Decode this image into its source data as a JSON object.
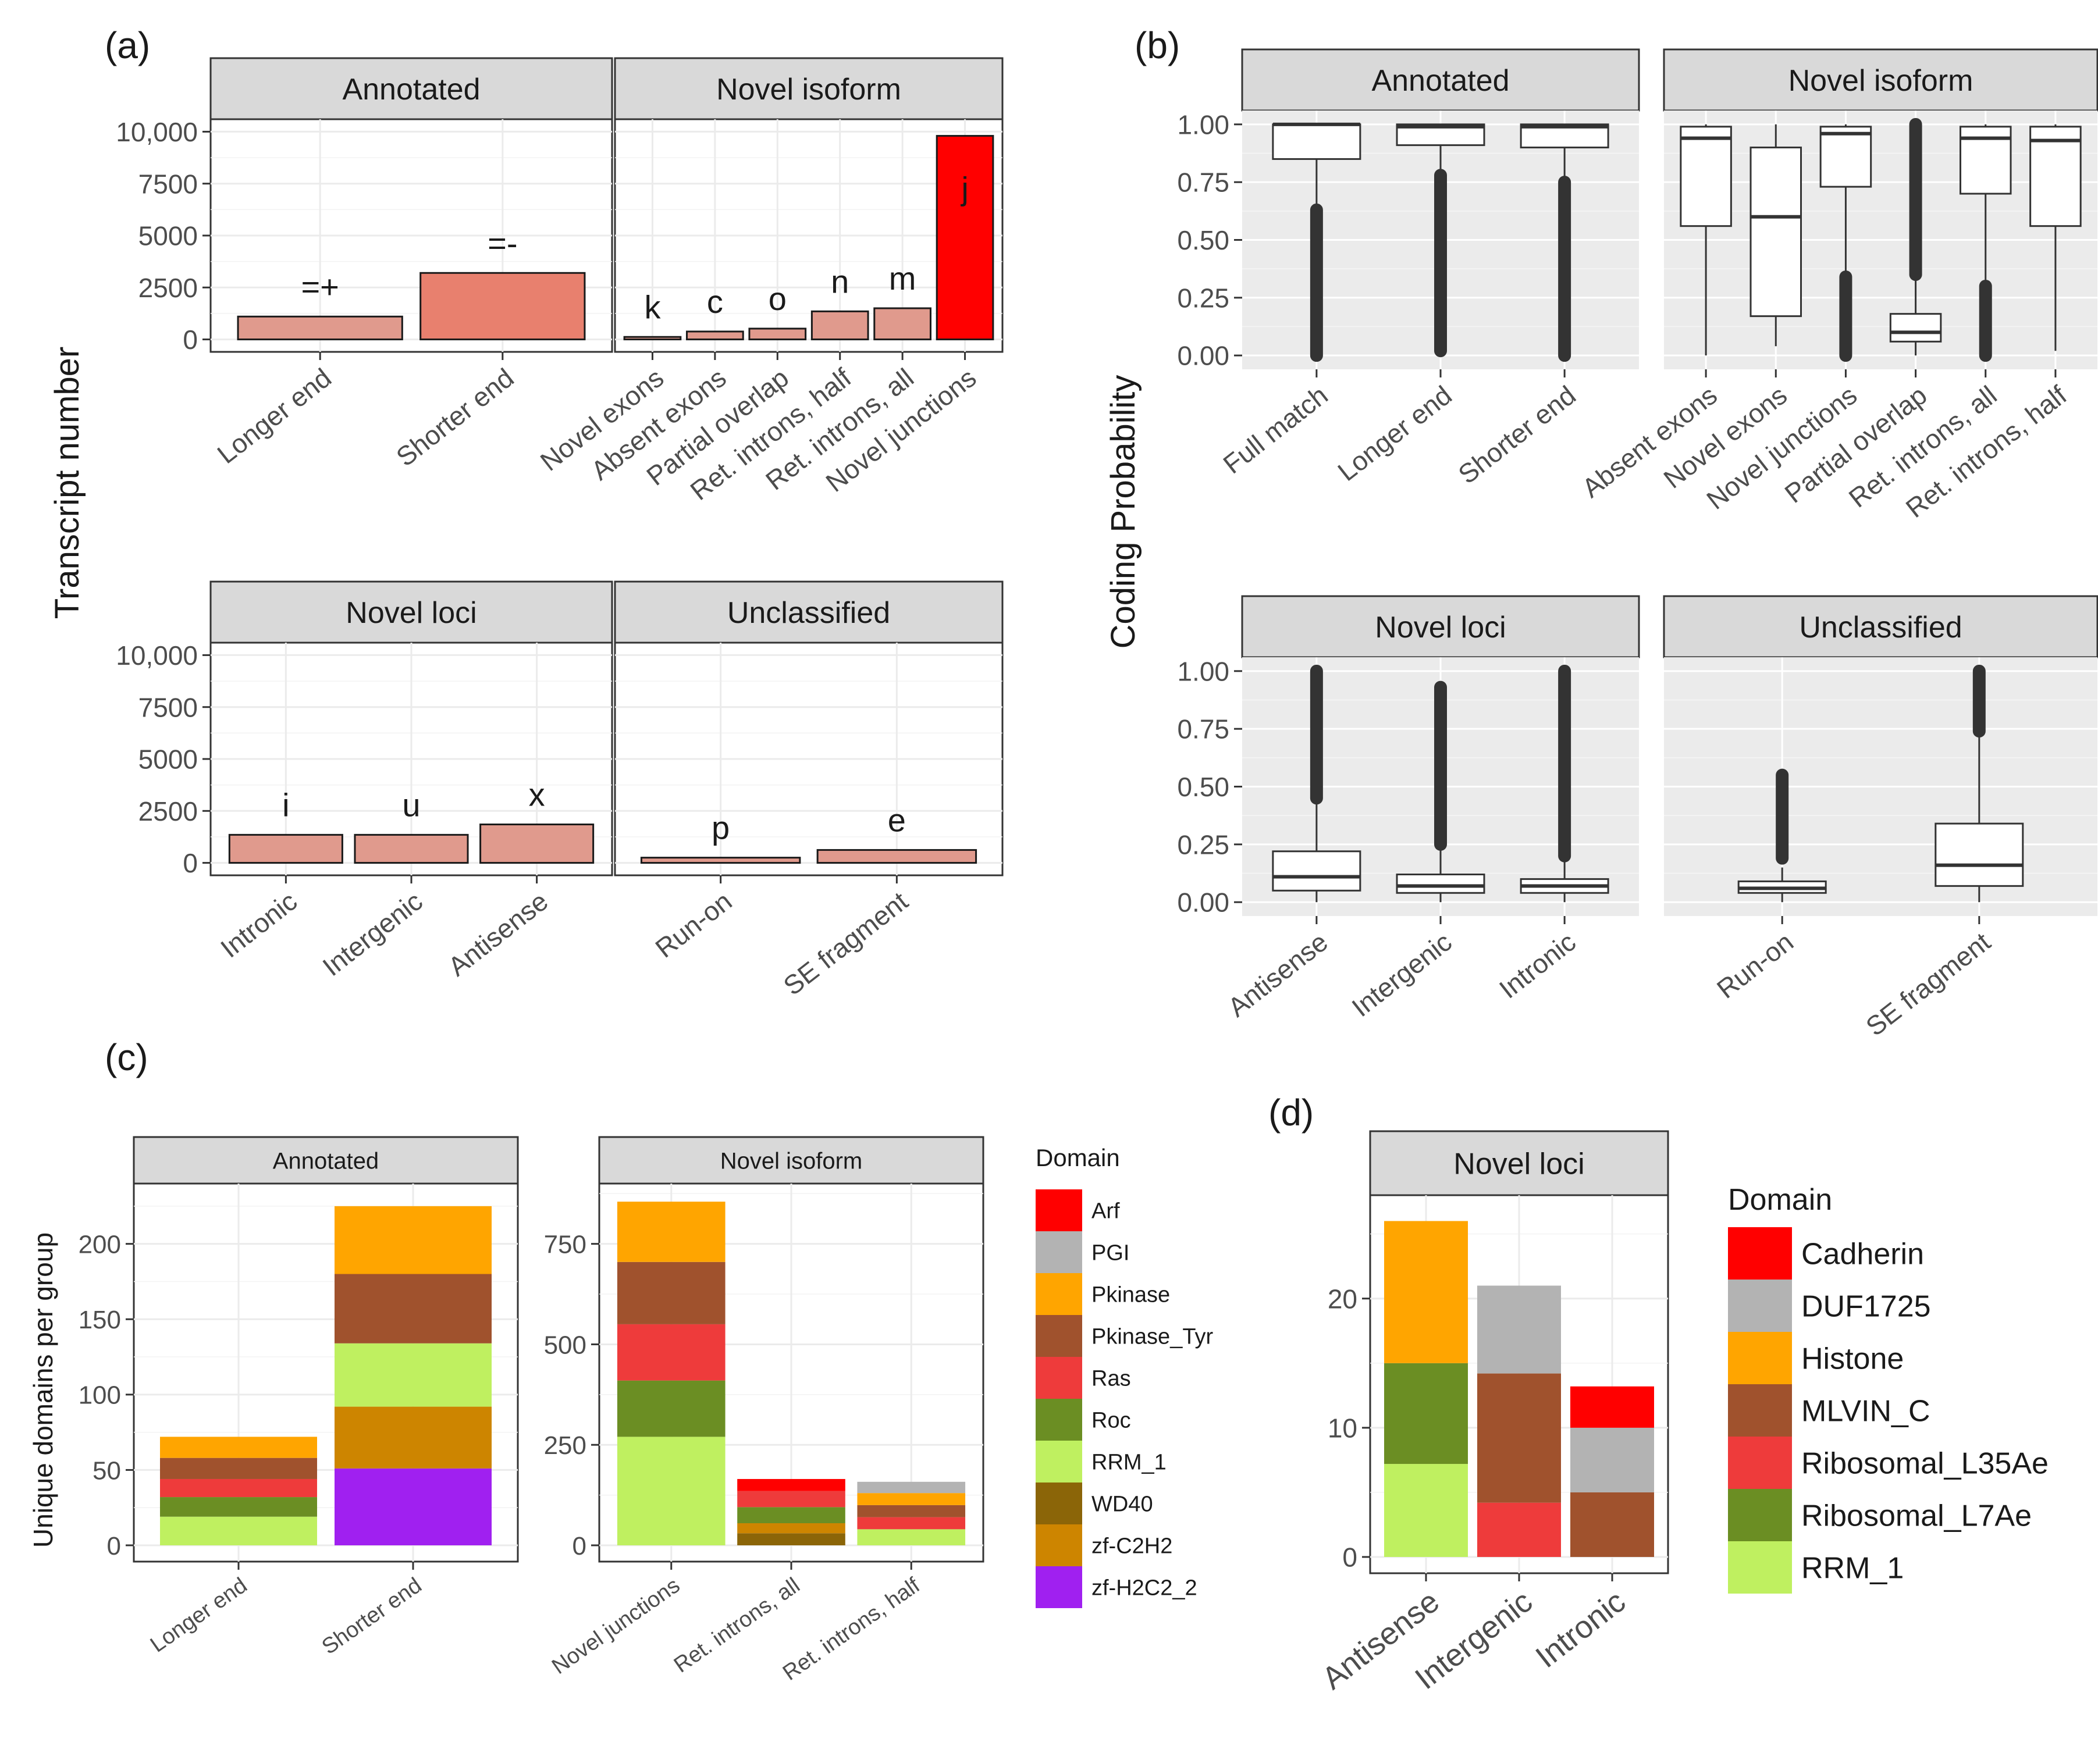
{
  "panel_labels": {
    "a": "(a)",
    "b": "(b)",
    "c": "(c)",
    "d": "(d)"
  },
  "chart_data": [
    {
      "id": "a",
      "type": "bar",
      "ylabel": "Transcript number",
      "ylim": [
        0,
        10000
      ],
      "yticks": [
        0,
        2500,
        5000,
        7500,
        10000
      ],
      "ytick_labels": [
        "0",
        "2500",
        "5000",
        "7500",
        "10,000"
      ],
      "facets": [
        {
          "title": "Annotated",
          "categories": [
            "Longer end",
            "Shorter end"
          ],
          "values": [
            1100,
            3200
          ],
          "bar_labels": [
            "=+",
            "=-"
          ],
          "colors": [
            "#e09a8d",
            "#e8806e"
          ]
        },
        {
          "title": "Novel isoform",
          "categories": [
            "Novel exons",
            "Absent exons",
            "Partial overlap",
            "Ret. introns, half",
            "Ret. introns, all",
            "Novel junctions"
          ],
          "values": [
            120,
            380,
            520,
            1350,
            1500,
            9800
          ],
          "bar_labels": [
            "k",
            "c",
            "o",
            "n",
            "m",
            "j"
          ],
          "colors": [
            "#e09a8d",
            "#e09a8d",
            "#e09a8d",
            "#e09a8d",
            "#e09a8d",
            "#ff0000"
          ]
        },
        {
          "title": "Novel loci",
          "categories": [
            "Intronic",
            "Intergenic",
            "Antisense"
          ],
          "values": [
            1350,
            1350,
            1850
          ],
          "bar_labels": [
            "i",
            "u",
            "x"
          ],
          "colors": [
            "#e09a8d",
            "#e09a8d",
            "#e09a8d"
          ]
        },
        {
          "title": "Unclassified",
          "categories": [
            "Run-on",
            "SE fragment"
          ],
          "values": [
            250,
            620
          ],
          "bar_labels": [
            "p",
            "e"
          ],
          "colors": [
            "#e09a8d",
            "#e09a8d"
          ]
        }
      ]
    },
    {
      "id": "b",
      "type": "box",
      "ylabel": "Coding Probability",
      "ylim": [
        0,
        1
      ],
      "yticks": [
        0,
        0.25,
        0.5,
        0.75,
        1
      ],
      "ytick_labels": [
        "0.00",
        "0.25",
        "0.50",
        "0.75",
        "1.00"
      ],
      "facets": [
        {
          "title": "Annotated",
          "categories": [
            "Full match",
            "Longer end",
            "Shorter end"
          ],
          "boxes": [
            {
              "q1": 0.85,
              "median": 1.0,
              "q3": 1.0,
              "whisker_low": 0.63,
              "whisker_high": 1.0,
              "outliers": [
                0.0,
                0.63
              ]
            },
            {
              "q1": 0.91,
              "median": 0.99,
              "q3": 1.0,
              "whisker_low": 0.78,
              "whisker_high": 1.0,
              "outliers": [
                0.02,
                0.78
              ]
            },
            {
              "q1": 0.9,
              "median": 0.99,
              "q3": 1.0,
              "whisker_low": 0.75,
              "whisker_high": 1.0,
              "outliers": [
                0.0,
                0.75
              ]
            }
          ]
        },
        {
          "title": "Novel isoform",
          "categories": [
            "Absent exons",
            "Novel exons",
            "Novel junctions",
            "Partial overlap",
            "Ret. introns, all",
            "Ret. introns, half"
          ],
          "boxes": [
            {
              "q1": 0.56,
              "median": 0.94,
              "q3": 0.99,
              "whisker_low": 0.0,
              "whisker_high": 1.0,
              "outliers": []
            },
            {
              "q1": 0.17,
              "median": 0.6,
              "q3": 0.9,
              "whisker_low": 0.04,
              "whisker_high": 1.0,
              "outliers": []
            },
            {
              "q1": 0.73,
              "median": 0.96,
              "q3": 0.99,
              "whisker_low": 0.35,
              "whisker_high": 1.0,
              "outliers": [
                0.0,
                0.34
              ]
            },
            {
              "q1": 0.06,
              "median": 0.1,
              "q3": 0.18,
              "whisker_low": 0.0,
              "whisker_high": 0.35,
              "outliers": [
                0.35,
                1.0
              ]
            },
            {
              "q1": 0.7,
              "median": 0.94,
              "q3": 0.99,
              "whisker_low": 0.3,
              "whisker_high": 1.0,
              "outliers": [
                0.0,
                0.3
              ]
            },
            {
              "q1": 0.56,
              "median": 0.93,
              "q3": 0.99,
              "whisker_low": 0.02,
              "whisker_high": 1.0,
              "outliers": []
            }
          ]
        },
        {
          "title": "Novel loci",
          "categories": [
            "Antisense",
            "Intergenic",
            "Intronic"
          ],
          "boxes": [
            {
              "q1": 0.05,
              "median": 0.11,
              "q3": 0.22,
              "whisker_low": 0.0,
              "whisker_high": 0.45,
              "outliers": [
                0.45,
                1.0
              ]
            },
            {
              "q1": 0.04,
              "median": 0.07,
              "q3": 0.12,
              "whisker_low": 0.0,
              "whisker_high": 0.25,
              "outliers": [
                0.25,
                0.93
              ]
            },
            {
              "q1": 0.04,
              "median": 0.07,
              "q3": 0.1,
              "whisker_low": 0.0,
              "whisker_high": 0.2,
              "outliers": [
                0.2,
                1.0
              ]
            }
          ]
        },
        {
          "title": "Unclassified",
          "categories": [
            "Run-on",
            "SE fragment"
          ],
          "boxes": [
            {
              "q1": 0.04,
              "median": 0.06,
              "q3": 0.09,
              "whisker_low": 0.0,
              "whisker_high": 0.15,
              "outliers": [
                0.19,
                0.55
              ]
            },
            {
              "q1": 0.07,
              "median": 0.16,
              "q3": 0.34,
              "whisker_low": 0.0,
              "whisker_high": 0.74,
              "outliers": [
                0.74,
                1.0
              ]
            }
          ]
        }
      ]
    },
    {
      "id": "c",
      "type": "stacked_bar",
      "ylabel": "Unique domains per group",
      "legend_title": "Domain",
      "legend": [
        {
          "name": "Arf",
          "color": "#ff0000"
        },
        {
          "name": "PGI",
          "color": "#b3b3b3"
        },
        {
          "name": "Pkinase",
          "color": "#ffa500"
        },
        {
          "name": "Pkinase_Tyr",
          "color": "#a0522d"
        },
        {
          "name": "Ras",
          "color": "#ee3b3b"
        },
        {
          "name": "Roc",
          "color": "#6b8e23"
        },
        {
          "name": "RRM_1",
          "color": "#bff060"
        },
        {
          "name": "WD40",
          "color": "#8b6508"
        },
        {
          "name": "zf-C2H2",
          "color": "#cd8500"
        },
        {
          "name": "zf-H2C2_2",
          "color": "#a020f0"
        }
      ],
      "facets": [
        {
          "title": "Annotated",
          "ylim": [
            0,
            240
          ],
          "yticks": [
            0,
            50,
            100,
            150,
            200
          ],
          "categories": [
            "Longer end",
            "Shorter end"
          ],
          "stacks": [
            [
              {
                "domain": "RRM_1",
                "value": 19
              },
              {
                "domain": "Roc",
                "value": 13
              },
              {
                "domain": "Ras",
                "value": 12
              },
              {
                "domain": "Pkinase_Tyr",
                "value": 14
              },
              {
                "domain": "Pkinase",
                "value": 14
              }
            ],
            [
              {
                "domain": "zf-H2C2_2",
                "value": 51
              },
              {
                "domain": "zf-C2H2",
                "value": 41
              },
              {
                "domain": "RRM_1",
                "value": 42
              },
              {
                "domain": "Pkinase_Tyr",
                "value": 46
              },
              {
                "domain": "Pkinase",
                "value": 45
              }
            ]
          ]
        },
        {
          "title": "Novel isoform",
          "ylim": [
            0,
            900
          ],
          "yticks": [
            0,
            250,
            500,
            750
          ],
          "categories": [
            "Novel junctions",
            "Ret. introns, all",
            "Ret. introns, half"
          ],
          "stacks": [
            [
              {
                "domain": "RRM_1",
                "value": 270
              },
              {
                "domain": "Roc",
                "value": 140
              },
              {
                "domain": "Ras",
                "value": 140
              },
              {
                "domain": "Pkinase_Tyr",
                "value": 155
              },
              {
                "domain": "Pkinase",
                "value": 150
              }
            ],
            [
              {
                "domain": "WD40",
                "value": 30
              },
              {
                "domain": "zf-C2H2",
                "value": 25
              },
              {
                "domain": "Roc",
                "value": 40
              },
              {
                "domain": "Ras",
                "value": 40
              },
              {
                "domain": "Arf",
                "value": 30
              }
            ],
            [
              {
                "domain": "RRM_1",
                "value": 40
              },
              {
                "domain": "Ras",
                "value": 30
              },
              {
                "domain": "Pkinase_Tyr",
                "value": 30
              },
              {
                "domain": "Pkinase",
                "value": 30
              },
              {
                "domain": "PGI",
                "value": 28
              }
            ]
          ]
        }
      ]
    },
    {
      "id": "d",
      "type": "stacked_bar",
      "legend_title": "Domain",
      "legend": [
        {
          "name": "Cadherin",
          "color": "#ff0000"
        },
        {
          "name": "DUF1725",
          "color": "#b3b3b3"
        },
        {
          "name": "Histone",
          "color": "#ffa500"
        },
        {
          "name": "MLVIN_C",
          "color": "#a0522d"
        },
        {
          "name": "Ribosomal_L35Ae",
          "color": "#ee3b3b"
        },
        {
          "name": "Ribosomal_L7Ae",
          "color": "#6b8e23"
        },
        {
          "name": "RRM_1",
          "color": "#bff060"
        }
      ],
      "facets": [
        {
          "title": "Novel loci",
          "ylim": [
            0,
            28
          ],
          "yticks": [
            0,
            10,
            20
          ],
          "categories": [
            "Antisense",
            "Intergenic",
            "Intronic"
          ],
          "stacks": [
            [
              {
                "domain": "RRM_1",
                "value": 7.2
              },
              {
                "domain": "Ribosomal_L7Ae",
                "value": 7.8
              },
              {
                "domain": "Histone",
                "value": 11
              }
            ],
            [
              {
                "domain": "Ribosomal_L35Ae",
                "value": 4.2
              },
              {
                "domain": "MLVIN_C",
                "value": 10
              },
              {
                "domain": "DUF1725",
                "value": 6.8
              }
            ],
            [
              {
                "domain": "MLVIN_C",
                "value": 5
              },
              {
                "domain": "DUF1725",
                "value": 5
              },
              {
                "domain": "Cadherin",
                "value": 3.2
              }
            ]
          ]
        }
      ]
    }
  ]
}
